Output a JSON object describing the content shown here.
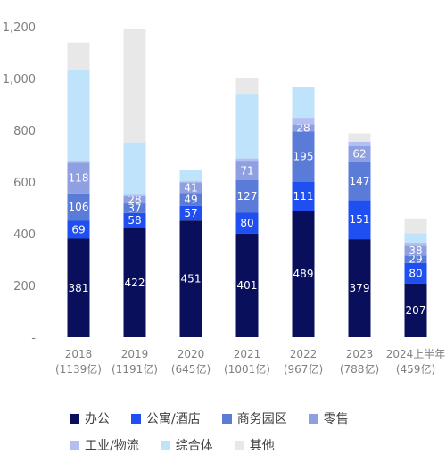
{
  "chart_data": {
    "type": "bar",
    "stacked": true,
    "categories": [
      [
        "2018",
        "(1139亿)"
      ],
      [
        "2019",
        "(1191亿)"
      ],
      [
        "2020",
        "(645亿)"
      ],
      [
        "2021",
        "(1001亿)"
      ],
      [
        "2022",
        "(967亿)"
      ],
      [
        "2023",
        "(788亿)"
      ],
      [
        "2024上半年",
        "(459亿)"
      ]
    ],
    "ylim": [
      0,
      1200
    ],
    "yticks": [
      0,
      200,
      400,
      600,
      800,
      1000,
      1200
    ],
    "ytick_labels": [
      "-",
      "200",
      "400",
      "600",
      "800",
      "1,000",
      "1,200"
    ],
    "grid": false,
    "legend_position": "bottom",
    "series": [
      {
        "name": "办公",
        "color": "#0a0f5c",
        "label_color": "#ffffff",
        "show_labels": true,
        "values": [
          381,
          422,
          451,
          401,
          489,
          379,
          207
        ]
      },
      {
        "name": "公寓/酒店",
        "color": "#1f4ff0",
        "label_color": "#ffffff",
        "show_labels": true,
        "values": [
          69,
          58,
          57,
          80,
          111,
          151,
          80
        ]
      },
      {
        "name": "商务园区",
        "color": "#5b7bd8",
        "label_color": "#ffffff",
        "show_labels": true,
        "values": [
          106,
          37,
          49,
          127,
          195,
          147,
          29
        ]
      },
      {
        "name": "零售",
        "color": "#8e9fe2",
        "label_color": "#ffffff",
        "show_labels": true,
        "values": [
          118,
          28,
          41,
          71,
          28,
          62,
          38
        ]
      },
      {
        "name": "工业/物流",
        "color": "#b3bff0",
        "label_color": "#ffffff",
        "show_labels": false,
        "values": [
          5,
          5,
          5,
          12,
          25,
          17,
          12
        ]
      },
      {
        "name": "综合体",
        "color": "#bfe3fb",
        "label_color": "#ffffff",
        "show_labels": false,
        "values": [
          353,
          203,
          42,
          250,
          119,
          0,
          36
        ]
      },
      {
        "name": "其他",
        "color": "#e8e8e8",
        "label_color": "#ffffff",
        "show_labels": false,
        "values": [
          107,
          438,
          0,
          60,
          0,
          32,
          57
        ]
      }
    ]
  }
}
